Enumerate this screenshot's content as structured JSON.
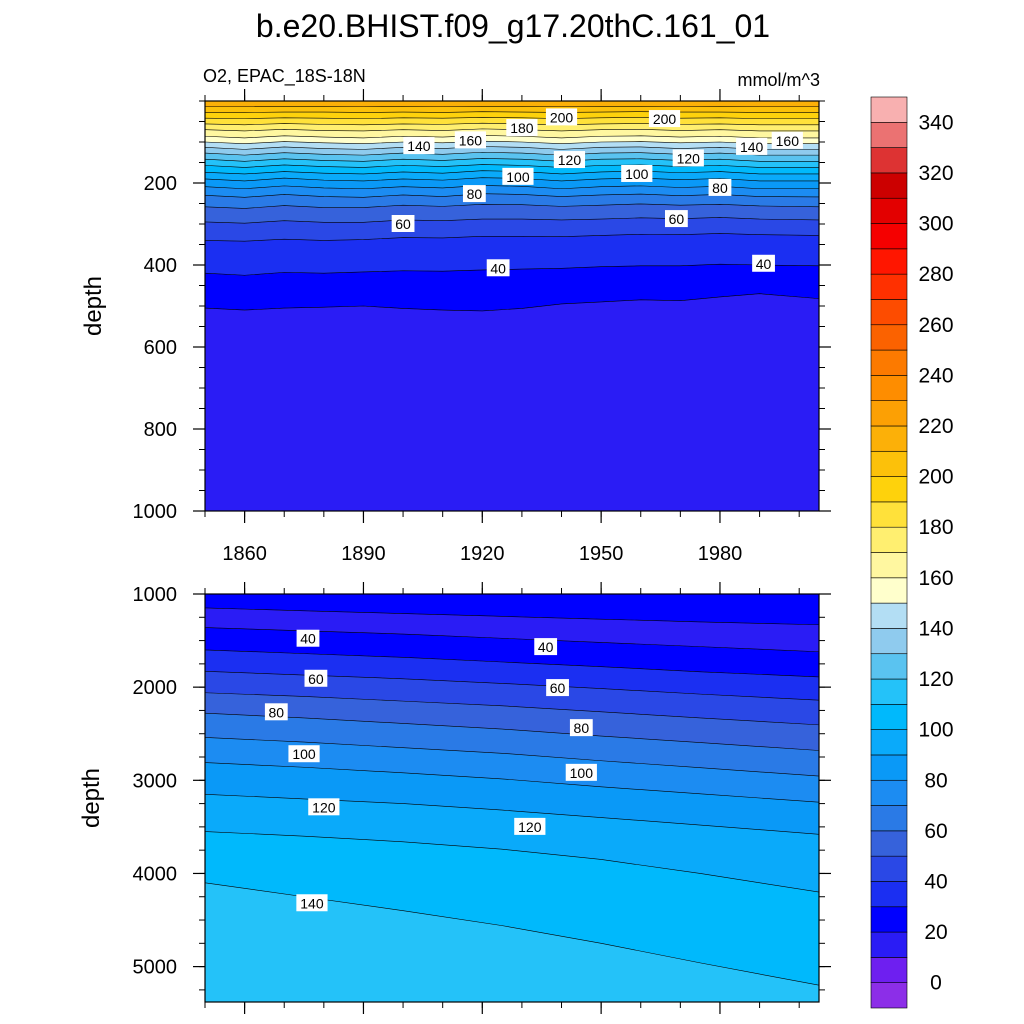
{
  "chart_data": {
    "type": "contour",
    "title": "b.e20.BHIST.f09_g17.20thC.161_01",
    "variable_label": "O2, EPAC_18S-18N",
    "units_label": "mmol/m^3",
    "panels": [
      {
        "name": "upper",
        "xlabel": "",
        "ylabel": "depth",
        "xlim": [
          1850,
          2005
        ],
        "ylim": [
          0,
          1000
        ],
        "y_reversed": true,
        "xticks": [
          1860,
          1890,
          1920,
          1950,
          1980
        ],
        "yticks": [
          200,
          400,
          600,
          800,
          1000
        ],
        "x": [
          1850,
          1860,
          1870,
          1880,
          1890,
          1900,
          1910,
          1920,
          1930,
          1940,
          1950,
          1960,
          1970,
          1980,
          1990,
          2005
        ],
        "contour_levels": [
          {
            "value": 220,
            "depth": [
              14,
              14,
              13,
              13,
              14,
              13,
              14,
              13,
              13,
              14,
              13,
              13,
              14,
              13,
              14,
              14
            ]
          },
          {
            "value": 210,
            "depth": [
              28,
              28,
              27,
              27,
              28,
              27,
              28,
              26,
              27,
              28,
              27,
              26,
              27,
              27,
              28,
              28
            ]
          },
          {
            "value": 200,
            "depth": [
              42,
              43,
              41,
              42,
              43,
              41,
              42,
              40,
              41,
              43,
              41,
              40,
              42,
              41,
              43,
              43
            ]
          },
          {
            "value": 190,
            "depth": [
              56,
              58,
              55,
              57,
              58,
              56,
              57,
              54,
              56,
              58,
              56,
              55,
              57,
              56,
              58,
              58
            ]
          },
          {
            "value": 180,
            "depth": [
              70,
              73,
              69,
              72,
              73,
              70,
              72,
              68,
              70,
              73,
              70,
              69,
              72,
              70,
              73,
              73
            ]
          },
          {
            "value": 170,
            "depth": [
              86,
              90,
              85,
              88,
              90,
              86,
              88,
              84,
              86,
              90,
              86,
              85,
              88,
              86,
              90,
              90
            ]
          },
          {
            "value": 160,
            "depth": [
              100,
              104,
              99,
              102,
              104,
              100,
              102,
              98,
              100,
              104,
              100,
              99,
              102,
              100,
              104,
              104
            ]
          },
          {
            "value": 150,
            "depth": [
              113,
              118,
              112,
              116,
              118,
              113,
              116,
              111,
              113,
              118,
              113,
              112,
              116,
              113,
              118,
              118
            ]
          },
          {
            "value": 140,
            "depth": [
              127,
              132,
              126,
              130,
              132,
              127,
              130,
              125,
              127,
              132,
              127,
              126,
              130,
              127,
              132,
              132
            ]
          },
          {
            "value": 130,
            "depth": [
              142,
              147,
              141,
              145,
              147,
              142,
              145,
              140,
              142,
              147,
              142,
              141,
              145,
              142,
              147,
              147
            ]
          },
          {
            "value": 120,
            "depth": [
              157,
              162,
              156,
              160,
              162,
              157,
              160,
              155,
              157,
              162,
              157,
              156,
              160,
              157,
              162,
              162
            ]
          },
          {
            "value": 110,
            "depth": [
              174,
              178,
              172,
              176,
              178,
              173,
              176,
              170,
              172,
              178,
              173,
              171,
              175,
              172,
              178,
              178
            ]
          },
          {
            "value": 100,
            "depth": [
              190,
              195,
              188,
              193,
              195,
              190,
              193,
              187,
              189,
              195,
              190,
              188,
              192,
              189,
              195,
              195
            ]
          },
          {
            "value": 90,
            "depth": [
              209,
              214,
              207,
              212,
              214,
              209,
              212,
              206,
              208,
              214,
              209,
              207,
              211,
              208,
              214,
              214
            ]
          },
          {
            "value": 80,
            "depth": [
              230,
              235,
              228,
              233,
              235,
              229,
              233,
              226,
              228,
              233,
              229,
              227,
              231,
              228,
              233,
              234
            ]
          },
          {
            "value": 70,
            "depth": [
              258,
              262,
              255,
              260,
              260,
              254,
              257,
              252,
              253,
              257,
              254,
              251,
              254,
              252,
              256,
              258
            ]
          },
          {
            "value": 60,
            "depth": [
              295,
              298,
              292,
              296,
              296,
              290,
              292,
              288,
              288,
              290,
              288,
              285,
              287,
              284,
              288,
              290
            ]
          },
          {
            "value": 50,
            "depth": [
              340,
              342,
              337,
              340,
              338,
              333,
              334,
              330,
              330,
              331,
              328,
              325,
              326,
              323,
              326,
              328
            ]
          },
          {
            "value": 40,
            "depth": [
              420,
              425,
              418,
              420,
              417,
              414,
              415,
              412,
              410,
              408,
              404,
              402,
              402,
              398,
              400,
              402
            ]
          },
          {
            "value": 30,
            "depth": [
              505,
              510,
              505,
              503,
              500,
              506,
              510,
              512,
              506,
              495,
              490,
              485,
              487,
              478,
              470,
              482
            ]
          }
        ],
        "contour_labels": [
          {
            "text": "200",
            "x": 1940,
            "depth": 40
          },
          {
            "text": "200",
            "x": 1966,
            "depth": 44
          },
          {
            "text": "180",
            "x": 1930,
            "depth": 66
          },
          {
            "text": "160",
            "x": 1917,
            "depth": 96
          },
          {
            "text": "160",
            "x": 1997,
            "depth": 97
          },
          {
            "text": "140",
            "x": 1904,
            "depth": 110
          },
          {
            "text": "140",
            "x": 1988,
            "depth": 112
          },
          {
            "text": "120",
            "x": 1942,
            "depth": 144
          },
          {
            "text": "120",
            "x": 1972,
            "depth": 140
          },
          {
            "text": "100",
            "x": 1929,
            "depth": 185
          },
          {
            "text": "100",
            "x": 1959,
            "depth": 178
          },
          {
            "text": "80",
            "x": 1918,
            "depth": 227
          },
          {
            "text": "80",
            "x": 1980,
            "depth": 212
          },
          {
            "text": "60",
            "x": 1900,
            "depth": 300
          },
          {
            "text": "60",
            "x": 1969,
            "depth": 288
          },
          {
            "text": "40",
            "x": 1924,
            "depth": 408
          },
          {
            "text": "40",
            "x": 1991,
            "depth": 397
          }
        ]
      },
      {
        "name": "lower",
        "xlabel": "",
        "ylabel": "depth",
        "xlim": [
          1850,
          2005
        ],
        "ylim": [
          1000,
          5380
        ],
        "y_reversed": true,
        "yticks": [
          1000,
          2000,
          3000,
          4000,
          5000
        ],
        "x": [
          1850,
          1875,
          1900,
          1925,
          1950,
          1975,
          2005
        ],
        "contour_levels": [
          {
            "value": 30,
            "depth": [
              1150,
              1180,
              1210,
              1240,
              1270,
              1300,
              1330
            ]
          },
          {
            "value": 40,
            "depth": [
              1360,
              1395,
              1430,
              1475,
              1520,
              1565,
              1620
            ]
          },
          {
            "value": 50,
            "depth": [
              1600,
              1640,
              1680,
              1730,
              1780,
              1835,
              1890
            ]
          },
          {
            "value": 60,
            "depth": [
              1830,
              1870,
              1910,
              1960,
              2015,
              2075,
              2140
            ]
          },
          {
            "value": 70,
            "depth": [
              2060,
              2100,
              2150,
              2200,
              2265,
              2330,
              2405
            ]
          },
          {
            "value": 80,
            "depth": [
              2280,
              2330,
              2390,
              2450,
              2525,
              2595,
              2680
            ]
          },
          {
            "value": 90,
            "depth": [
              2540,
              2590,
              2650,
              2710,
              2790,
              2865,
              2955
            ]
          },
          {
            "value": 100,
            "depth": [
              2810,
              2860,
              2920,
              2985,
              3070,
              3145,
              3235
            ]
          },
          {
            "value": 110,
            "depth": [
              3150,
              3200,
              3250,
              3320,
              3400,
              3480,
              3580
            ]
          },
          {
            "value": 120,
            "depth": [
              3550,
              3600,
              3660,
              3740,
              3850,
              4000,
              4200
            ]
          },
          {
            "value": 130,
            "depth": [
              4100,
              4250,
              4400,
              4560,
              4750,
              4960,
              5200
            ]
          }
        ],
        "contour_labels": [
          {
            "text": "40",
            "x": 1876,
            "depth": 1480
          },
          {
            "text": "40",
            "x": 1936,
            "depth": 1570
          },
          {
            "text": "60",
            "x": 1878,
            "depth": 1910
          },
          {
            "text": "60",
            "x": 1939,
            "depth": 2010
          },
          {
            "text": "80",
            "x": 1868,
            "depth": 2270
          },
          {
            "text": "80",
            "x": 1945,
            "depth": 2440
          },
          {
            "text": "100",
            "x": 1875,
            "depth": 2720
          },
          {
            "text": "100",
            "x": 1945,
            "depth": 2920
          },
          {
            "text": "120",
            "x": 1880,
            "depth": 3290
          },
          {
            "text": "120",
            "x": 1932,
            "depth": 3500
          },
          {
            "text": "140",
            "x": 1877,
            "depth": 4320
          }
        ]
      }
    ],
    "colorbar": {
      "levels": [
        0,
        10,
        20,
        30,
        40,
        50,
        60,
        70,
        80,
        90,
        100,
        110,
        120,
        130,
        140,
        150,
        160,
        170,
        180,
        190,
        200,
        210,
        220,
        230,
        240,
        250,
        260,
        270,
        280,
        290,
        300,
        310,
        320,
        330,
        340,
        350
      ],
      "tick_labels": [
        "0",
        "20",
        "40",
        "60",
        "80",
        "100",
        "120",
        "140",
        "160",
        "180",
        "200",
        "220",
        "240",
        "260",
        "280",
        "300",
        "320",
        "340"
      ],
      "colors": [
        "#8c2ee8",
        "#6e1ff0",
        "#2a1cf5",
        "#0000ff",
        "#1b2ff2",
        "#2a48e6",
        "#3662db",
        "#2a7ae6",
        "#1c8cf2",
        "#0a99f7",
        "#0aaafa",
        "#00b9fc",
        "#24c2f9",
        "#5ac3f0",
        "#8fcbee",
        "#b3def4",
        "#ffffcc",
        "#fff7a0",
        "#ffef70",
        "#ffe13a",
        "#fed20c",
        "#fcc10a",
        "#fcb008",
        "#fca004",
        "#fe8d00",
        "#fc7a00",
        "#fb6200",
        "#fd4c00",
        "#ff3000",
        "#ff1600",
        "#f50000",
        "#e30000",
        "#cc0000",
        "#dd3333",
        "#eb7272",
        "#f8b0b0"
      ]
    }
  }
}
